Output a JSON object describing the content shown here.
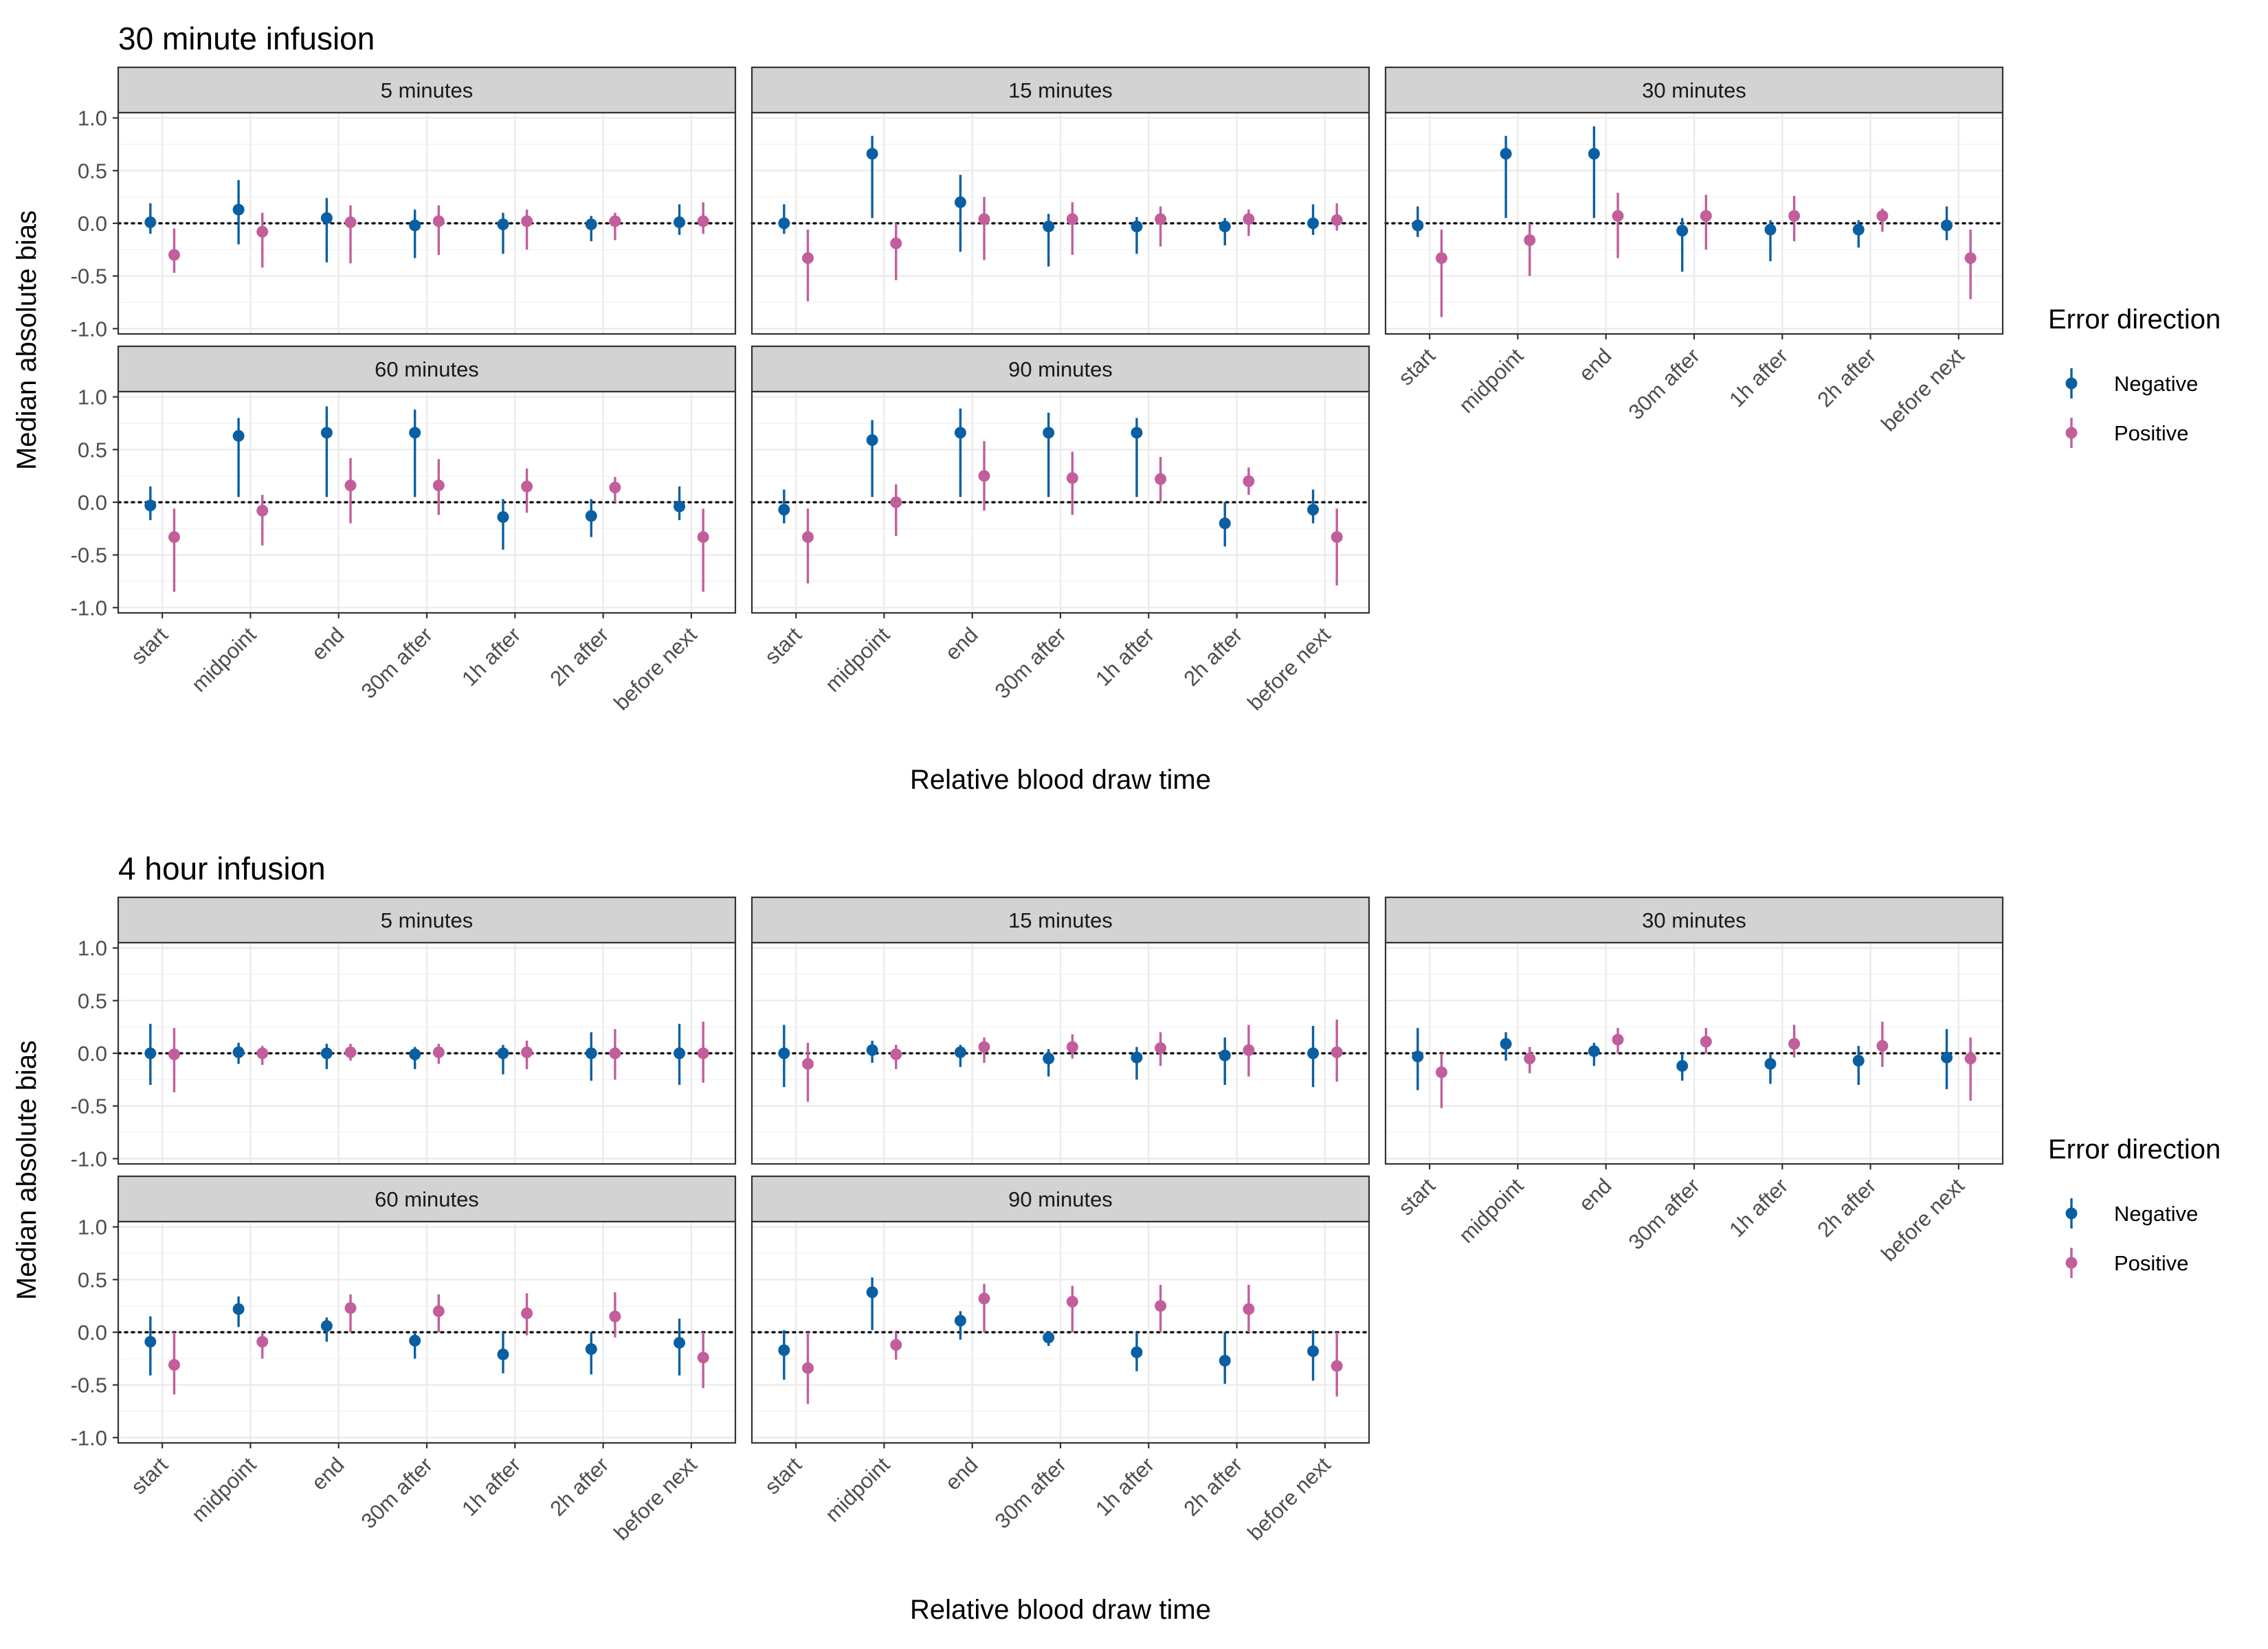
{
  "colors": {
    "negative": "#0a5fa3",
    "positive": "#c25e9b",
    "strip_fill": "#d3d3d3",
    "grid_major": "#ebebeb",
    "panel_border": "#333333"
  },
  "categories": [
    "start",
    "midpoint",
    "end",
    "30m after",
    "1h after",
    "2h after",
    "before next"
  ],
  "panel_labels": [
    "5 minutes",
    "15 minutes",
    "30 minutes",
    "60 minutes",
    "90 minutes"
  ],
  "y_ticks": [
    1.0,
    0.5,
    0.0,
    -0.5,
    -1.0
  ],
  "y_tick_labels": [
    "1.0",
    "0.5",
    "0.0",
    "-0.5",
    "-1.0"
  ],
  "ylabel": "Median absolute bias",
  "xlabel": "Relative blood draw time",
  "legend": {
    "title": "Error direction",
    "items": [
      "Negative",
      "Positive"
    ]
  },
  "chart_data": [
    {
      "type": "scatter",
      "title": "30 minute infusion",
      "ylim": [
        -1.05,
        1.05
      ],
      "series_names": [
        "Negative",
        "Positive"
      ],
      "panels": [
        {
          "label": "5 minutes",
          "negative": {
            "y": [
              0.01,
              0.13,
              0.05,
              -0.02,
              -0.01,
              -0.01,
              0.01
            ],
            "low": [
              -0.1,
              -0.2,
              -0.37,
              -0.33,
              -0.29,
              -0.17,
              -0.11
            ],
            "high": [
              0.19,
              0.41,
              0.24,
              0.13,
              0.1,
              0.07,
              0.18
            ]
          },
          "positive": {
            "y": [
              -0.3,
              -0.08,
              0.01,
              0.02,
              0.02,
              0.02,
              0.02
            ],
            "low": [
              -0.47,
              -0.42,
              -0.38,
              -0.3,
              -0.25,
              -0.16,
              -0.1
            ],
            "high": [
              -0.05,
              0.1,
              0.17,
              0.17,
              0.13,
              0.1,
              0.2
            ]
          }
        },
        {
          "label": "15 minutes",
          "negative": {
            "y": [
              0.0,
              0.66,
              0.2,
              -0.03,
              -0.03,
              -0.03,
              0.0
            ],
            "low": [
              -0.1,
              0.05,
              -0.27,
              -0.41,
              -0.29,
              -0.21,
              -0.11
            ],
            "high": [
              0.18,
              0.83,
              0.46,
              0.09,
              0.06,
              0.05,
              0.18
            ]
          },
          "positive": {
            "y": [
              -0.33,
              -0.19,
              0.04,
              0.04,
              0.04,
              0.04,
              0.03
            ],
            "low": [
              -0.74,
              -0.54,
              -0.35,
              -0.3,
              -0.22,
              -0.12,
              -0.07
            ],
            "high": [
              -0.06,
              0.0,
              0.25,
              0.2,
              0.16,
              0.13,
              0.19
            ]
          }
        },
        {
          "label": "30 minutes",
          "negative": {
            "y": [
              -0.02,
              0.66,
              0.66,
              -0.07,
              -0.06,
              -0.06,
              -0.02
            ],
            "low": [
              -0.13,
              0.05,
              0.05,
              -0.46,
              -0.36,
              -0.23,
              -0.16
            ],
            "high": [
              0.16,
              0.83,
              0.92,
              0.05,
              0.03,
              0.03,
              0.16
            ]
          },
          "positive": {
            "y": [
              -0.33,
              -0.16,
              0.07,
              0.07,
              0.07,
              0.07,
              -0.33
            ],
            "low": [
              -0.89,
              -0.5,
              -0.33,
              -0.25,
              -0.17,
              -0.08,
              -0.72
            ],
            "high": [
              -0.06,
              0.0,
              0.29,
              0.27,
              0.26,
              0.14,
              -0.06
            ]
          }
        },
        {
          "label": "60 minutes",
          "negative": {
            "y": [
              -0.03,
              0.63,
              0.66,
              0.66,
              -0.14,
              -0.13,
              -0.04
            ],
            "low": [
              -0.17,
              0.05,
              0.05,
              0.05,
              -0.45,
              -0.33,
              -0.17
            ],
            "high": [
              0.15,
              0.8,
              0.91,
              0.88,
              0.03,
              0.03,
              0.15
            ]
          },
          "positive": {
            "y": [
              -0.33,
              -0.08,
              0.16,
              0.16,
              0.15,
              0.14,
              -0.33
            ],
            "low": [
              -0.85,
              -0.41,
              -0.2,
              -0.12,
              -0.1,
              0.0,
              -0.85
            ],
            "high": [
              -0.06,
              0.07,
              0.42,
              0.41,
              0.32,
              0.24,
              -0.06
            ]
          }
        },
        {
          "label": "90 minutes",
          "negative": {
            "y": [
              -0.07,
              0.59,
              0.66,
              0.66,
              0.66,
              -0.2,
              -0.07
            ],
            "low": [
              -0.2,
              0.05,
              0.05,
              0.05,
              0.05,
              -0.42,
              -0.2
            ],
            "high": [
              0.12,
              0.78,
              0.89,
              0.85,
              0.8,
              0.0,
              0.12
            ]
          },
          "positive": {
            "y": [
              -0.33,
              0.0,
              0.25,
              0.23,
              0.22,
              0.2,
              -0.33
            ],
            "low": [
              -0.77,
              -0.32,
              -0.08,
              -0.12,
              0.0,
              0.07,
              -0.79
            ],
            "high": [
              -0.06,
              0.17,
              0.58,
              0.48,
              0.43,
              0.33,
              -0.06
            ]
          }
        }
      ]
    },
    {
      "type": "scatter",
      "title": "4 hour infusion",
      "ylim": [
        -1.05,
        1.05
      ],
      "series_names": [
        "Negative",
        "Positive"
      ],
      "panels": [
        {
          "label": "5 minutes",
          "negative": {
            "y": [
              0.0,
              0.01,
              0.0,
              -0.01,
              0.0,
              0.0,
              0.0
            ],
            "low": [
              -0.3,
              -0.1,
              -0.15,
              -0.15,
              -0.2,
              -0.26,
              -0.3
            ],
            "high": [
              0.28,
              0.1,
              0.09,
              0.06,
              0.08,
              0.2,
              0.28
            ]
          },
          "positive": {
            "y": [
              -0.01,
              0.0,
              0.01,
              0.01,
              0.01,
              0.0,
              0.0
            ],
            "low": [
              -0.37,
              -0.11,
              -0.07,
              -0.1,
              -0.15,
              -0.25,
              -0.28
            ],
            "high": [
              0.24,
              0.07,
              0.09,
              0.09,
              0.12,
              0.23,
              0.3
            ]
          }
        },
        {
          "label": "15 minutes",
          "negative": {
            "y": [
              0.0,
              0.03,
              0.01,
              -0.05,
              -0.04,
              -0.02,
              0.0
            ],
            "low": [
              -0.32,
              -0.09,
              -0.13,
              -0.22,
              -0.25,
              -0.3,
              -0.32
            ],
            "high": [
              0.27,
              0.12,
              0.08,
              0.04,
              0.06,
              0.15,
              0.26
            ]
          },
          "positive": {
            "y": [
              -0.1,
              -0.01,
              0.06,
              0.06,
              0.05,
              0.03,
              0.01
            ],
            "low": [
              -0.46,
              -0.15,
              -0.09,
              -0.05,
              -0.12,
              -0.22,
              -0.27
            ],
            "high": [
              0.1,
              0.08,
              0.15,
              0.18,
              0.2,
              0.27,
              0.32
            ]
          }
        },
        {
          "label": "30 minutes",
          "negative": {
            "y": [
              -0.03,
              0.09,
              0.02,
              -0.12,
              -0.1,
              -0.07,
              -0.04
            ],
            "low": [
              -0.35,
              -0.07,
              -0.12,
              -0.26,
              -0.29,
              -0.3,
              -0.34
            ],
            "high": [
              0.24,
              0.2,
              0.1,
              0.0,
              0.0,
              0.07,
              0.23
            ]
          },
          "positive": {
            "y": [
              -0.18,
              -0.05,
              0.13,
              0.11,
              0.09,
              0.07,
              -0.05
            ],
            "low": [
              -0.52,
              -0.19,
              0.0,
              0.0,
              -0.04,
              -0.13,
              -0.45
            ],
            "high": [
              0.0,
              0.06,
              0.24,
              0.24,
              0.27,
              0.3,
              0.15
            ]
          }
        },
        {
          "label": "60 minutes",
          "negative": {
            "y": [
              -0.09,
              0.22,
              0.06,
              -0.08,
              -0.21,
              -0.16,
              -0.1
            ],
            "low": [
              -0.41,
              0.05,
              -0.09,
              -0.25,
              -0.39,
              -0.4,
              -0.41
            ],
            "high": [
              0.15,
              0.34,
              0.14,
              0.0,
              0.0,
              0.0,
              0.13
            ]
          },
          "positive": {
            "y": [
              -0.31,
              -0.09,
              0.23,
              0.2,
              0.18,
              0.15,
              -0.24
            ],
            "low": [
              -0.59,
              -0.25,
              0.0,
              0.0,
              -0.03,
              -0.05,
              -0.53
            ],
            "high": [
              0.0,
              0.0,
              0.36,
              0.36,
              0.37,
              0.38,
              0.0
            ]
          }
        },
        {
          "label": "90 minutes",
          "negative": {
            "y": [
              -0.17,
              0.38,
              0.11,
              -0.05,
              -0.19,
              -0.27,
              -0.18
            ],
            "low": [
              -0.45,
              0.02,
              -0.07,
              -0.13,
              -0.37,
              -0.49,
              -0.46
            ],
            "high": [
              0.02,
              0.52,
              0.2,
              0.0,
              0.0,
              0.0,
              0.02
            ]
          },
          "positive": {
            "y": [
              -0.34,
              -0.12,
              0.32,
              0.29,
              0.25,
              0.22,
              -0.32
            ],
            "low": [
              -0.68,
              -0.26,
              0.0,
              0.0,
              0.0,
              0.0,
              -0.61
            ],
            "high": [
              0.0,
              0.0,
              0.46,
              0.44,
              0.45,
              0.45,
              0.0
            ]
          }
        }
      ]
    }
  ]
}
